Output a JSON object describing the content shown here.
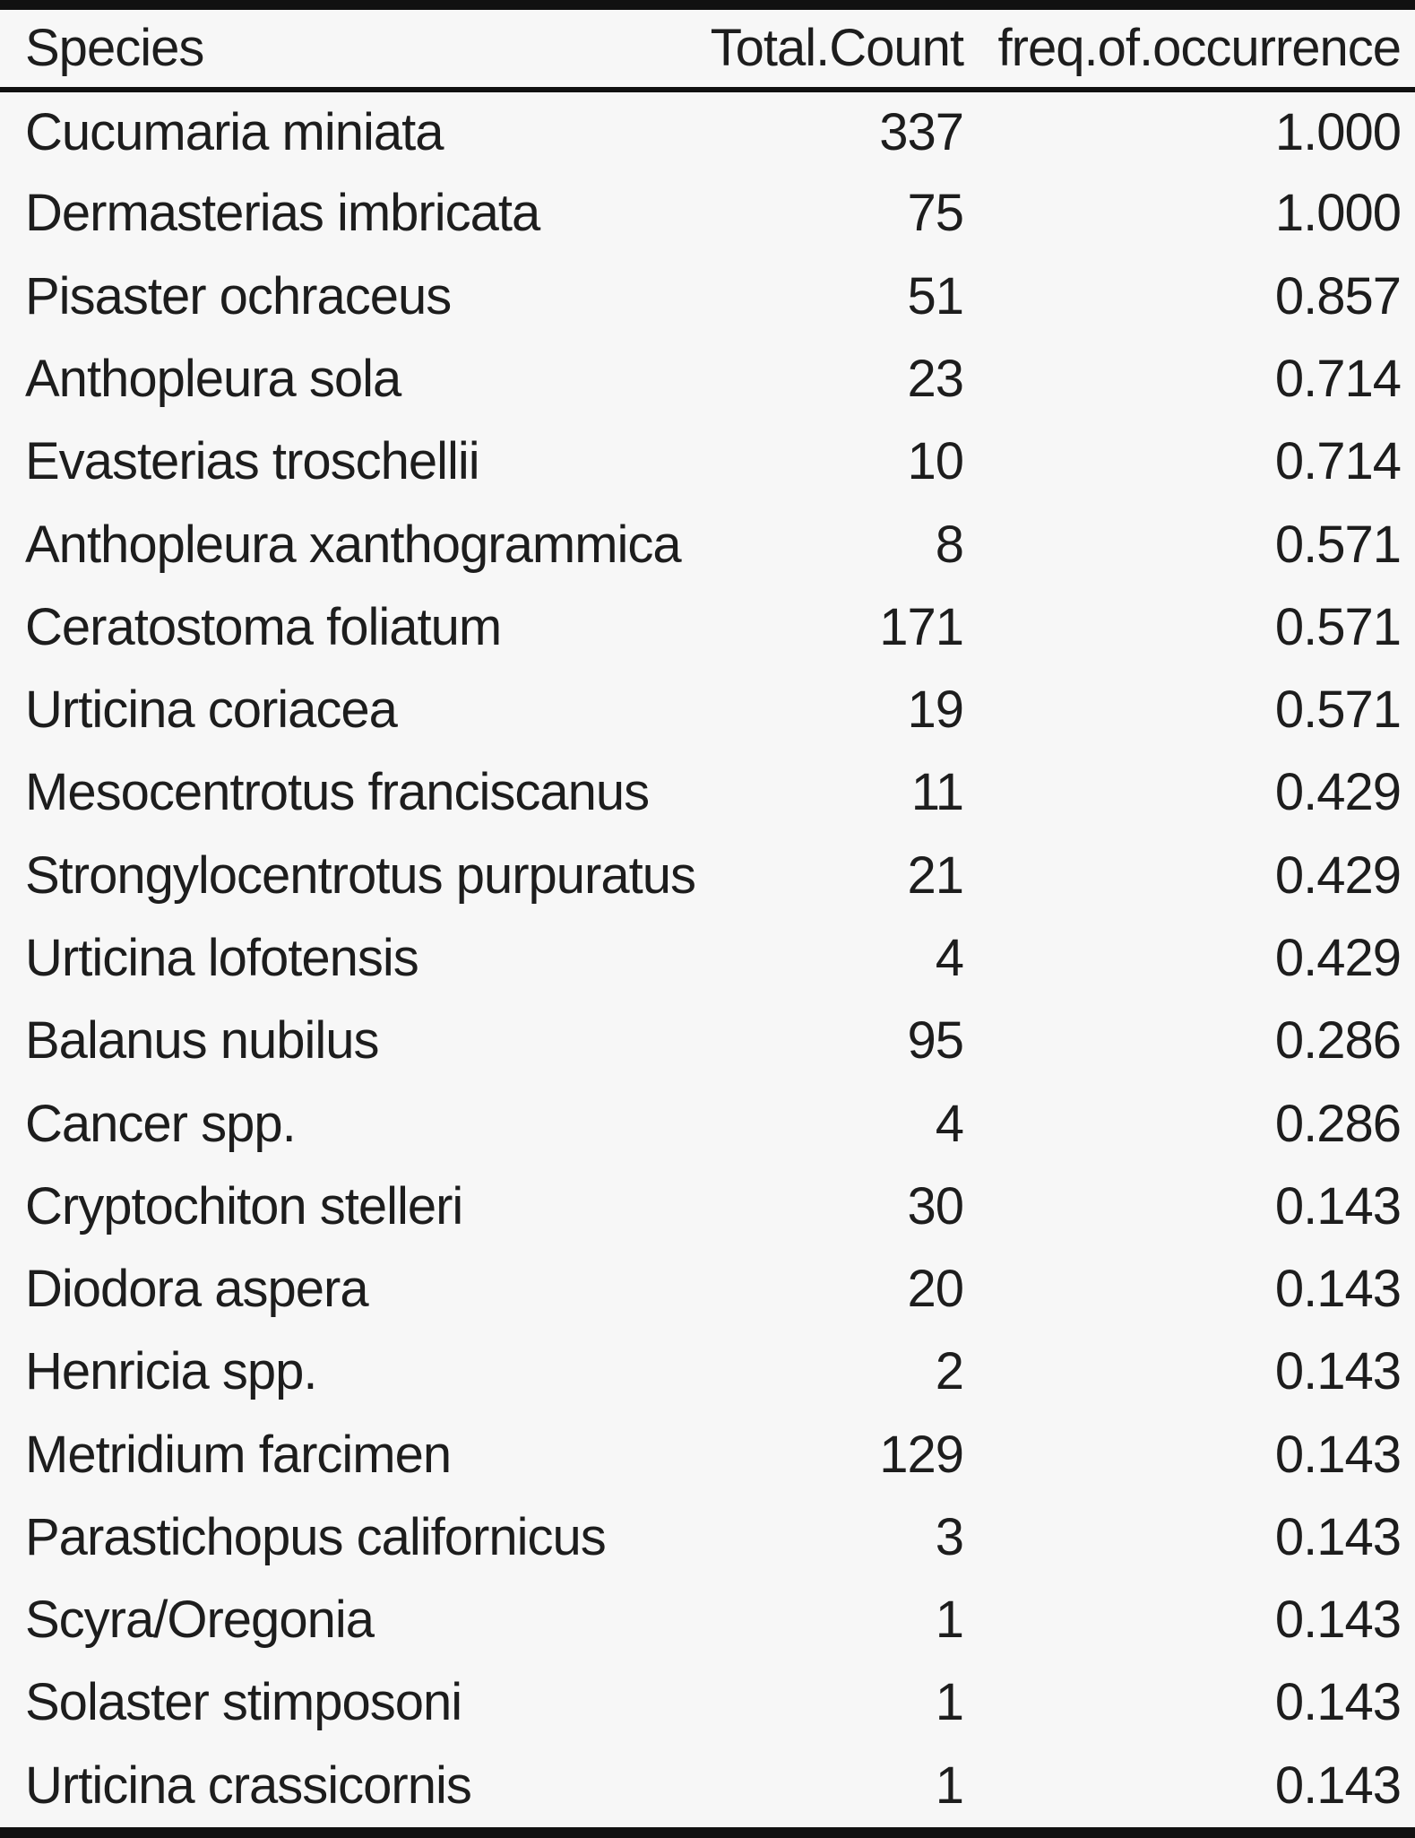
{
  "chart_data": {
    "type": "table",
    "columns": [
      "Species",
      "Total.Count",
      "freq.of.occurrence"
    ],
    "rows": [
      [
        "Cucumaria miniata",
        337,
        "1.000"
      ],
      [
        "Dermasterias imbricata",
        75,
        "1.000"
      ],
      [
        "Pisaster ochraceus",
        51,
        "0.857"
      ],
      [
        "Anthopleura sola",
        23,
        "0.714"
      ],
      [
        "Evasterias troschellii",
        10,
        "0.714"
      ],
      [
        "Anthopleura xanthogrammica",
        8,
        "0.571"
      ],
      [
        "Ceratostoma foliatum",
        171,
        "0.571"
      ],
      [
        "Urticina coriacea",
        19,
        "0.571"
      ],
      [
        "Mesocentrotus franciscanus",
        11,
        "0.429"
      ],
      [
        "Strongylocentrotus purpuratus",
        21,
        "0.429"
      ],
      [
        "Urticina lofotensis",
        4,
        "0.429"
      ],
      [
        "Balanus nubilus",
        95,
        "0.286"
      ],
      [
        "Cancer spp.",
        4,
        "0.286"
      ],
      [
        "Cryptochiton stelleri",
        30,
        "0.143"
      ],
      [
        "Diodora aspera",
        20,
        "0.143"
      ],
      [
        "Henricia spp.",
        2,
        "0.143"
      ],
      [
        "Metridium farcimen",
        129,
        "0.143"
      ],
      [
        "Parastichopus californicus",
        3,
        "0.143"
      ],
      [
        "Scyra/Oregonia",
        1,
        "0.143"
      ],
      [
        "Solaster stimposoni",
        1,
        "0.143"
      ],
      [
        "Urticina crassicornis",
        1,
        "0.143"
      ]
    ],
    "layout": {
      "header_alignment": [
        "left",
        "right",
        "right"
      ],
      "body_alignment": [
        "left",
        "right",
        "right"
      ],
      "grid": "horizontal-rules-only"
    }
  },
  "colors": {
    "background": "#f7f7f7",
    "text": "#1d1d1d",
    "rule": "#111111"
  }
}
